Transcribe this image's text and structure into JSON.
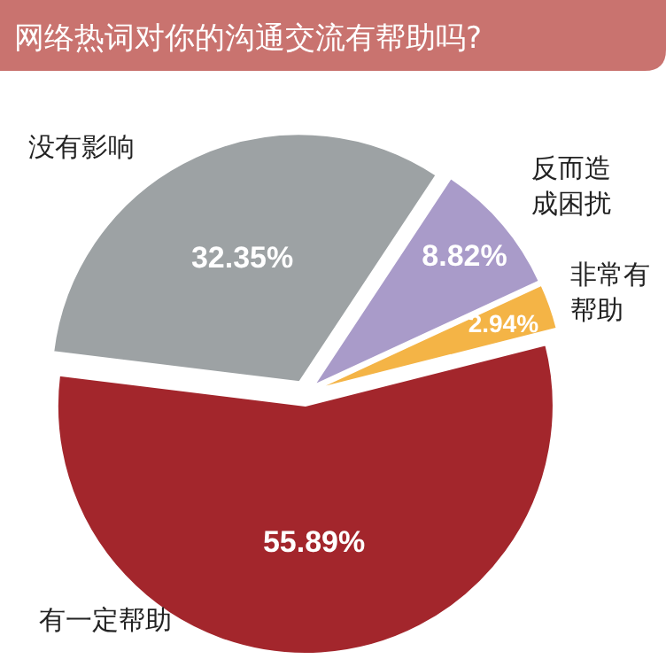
{
  "chart_data": {
    "type": "pie",
    "title": "网络热词对你的沟通交流有帮助吗?",
    "categories": [
      "没有影响",
      "反而造成困扰",
      "非常有帮助",
      "有一定帮助"
    ],
    "values": [
      32.35,
      8.82,
      2.94,
      55.89
    ],
    "colors": [
      "#9da2a4",
      "#a99bc9",
      "#f4b446",
      "#a3262c"
    ],
    "value_labels": [
      "32.35%",
      "8.82%",
      "2.94%",
      "55.89%"
    ]
  }
}
